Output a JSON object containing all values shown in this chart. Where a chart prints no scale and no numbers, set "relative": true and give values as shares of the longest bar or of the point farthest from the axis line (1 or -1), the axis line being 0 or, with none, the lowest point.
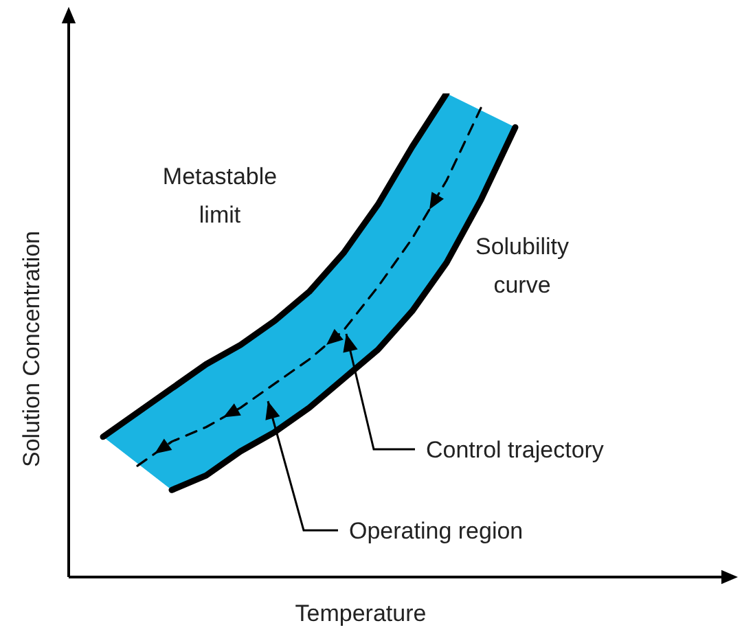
{
  "chart_data": {
    "type": "line",
    "relative": true,
    "xlabel": "Temperature",
    "ylabel": "Solution Concentration",
    "categories": [
      null,
      null,
      null,
      null,
      null,
      null,
      null,
      null,
      null,
      null,
      null,
      null,
      null,
      null,
      null,
      null,
      null,
      null,
      null,
      null
    ],
    "series": [
      {
        "color": "#000000",
        "line_style": "solid",
        "values": [
          null,
          0.29,
          0.34,
          0.39,
          0.44,
          0.48,
          0.53,
          0.59,
          0.67,
          0.77,
          0.89,
          1.0,
          null,
          null,
          null,
          null,
          null,
          null,
          null,
          null
        ]
      },
      {
        "color": "#000000",
        "line_style": "solid",
        "values": [
          null,
          null,
          null,
          0.18,
          0.21,
          0.26,
          0.3,
          0.35,
          0.41,
          0.47,
          0.55,
          0.65,
          0.78,
          0.93,
          null,
          null,
          null,
          null,
          null,
          null
        ]
      },
      {
        "color": "#000000",
        "line_style": "dashed",
        "values": [
          null,
          null,
          0.23,
          0.28,
          0.31,
          0.35,
          0.4,
          0.45,
          0.51,
          0.6,
          0.7,
          0.82,
          0.97,
          null,
          null,
          null,
          null,
          null,
          null,
          null
        ]
      }
    ],
    "annotations": [
      "Metastable\nlimit",
      "Solubility\ncurve",
      "Control trajectory",
      "Operating region"
    ],
    "marker": "none",
    "legend": false
  }
}
